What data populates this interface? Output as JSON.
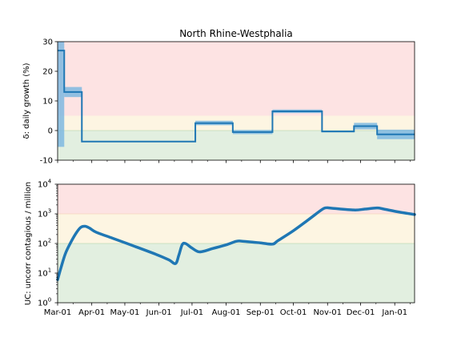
{
  "chart_data": [
    {
      "type": "line",
      "title": "North Rhine-Westphalia",
      "ylabel": "δ: daily growth (%)",
      "ylim": [
        -10,
        30
      ],
      "yticks": [
        -10,
        0,
        10,
        20,
        30
      ],
      "bands": [
        {
          "from": -10,
          "to": 0,
          "color": "#e2efe0"
        },
        {
          "from": 0,
          "to": 5,
          "color": "#fdf5e2"
        },
        {
          "from": 5,
          "to": 30,
          "color": "#fde3e3"
        }
      ],
      "series": [
        {
          "color": "#1f77b4",
          "band_color": "#7fb8e1",
          "segments": [
            {
              "start": "2020-03-01",
              "end": "2020-03-07",
              "value": 27,
              "lo": -5.5,
              "hi": 30
            },
            {
              "start": "2020-03-07",
              "end": "2020-03-23",
              "value": 13,
              "lo": 11.3,
              "hi": 14.7
            },
            {
              "start": "2020-03-23",
              "end": "2020-07-04",
              "value": -3.7,
              "lo": -3.9,
              "hi": -3.5
            },
            {
              "start": "2020-07-04",
              "end": "2020-08-07",
              "value": 2.5,
              "lo": 1.8,
              "hi": 3.3
            },
            {
              "start": "2020-08-07",
              "end": "2020-09-12",
              "value": -0.5,
              "lo": -1.2,
              "hi": 0.2
            },
            {
              "start": "2020-09-12",
              "end": "2020-10-27",
              "value": 6.5,
              "lo": 5.9,
              "hi": 7.1
            },
            {
              "start": "2020-10-27",
              "end": "2020-11-25",
              "value": -0.3,
              "lo": -0.6,
              "hi": 0.0
            },
            {
              "start": "2020-11-25",
              "end": "2020-12-16",
              "value": 1.5,
              "lo": 0.4,
              "hi": 2.6
            },
            {
              "start": "2020-12-16",
              "end": "2021-01-19",
              "value": -1.3,
              "lo": -2.9,
              "hi": 0.3
            }
          ]
        }
      ]
    },
    {
      "type": "line",
      "ylabel": "UC: uncorr contagious / million",
      "yscale": "log",
      "ylim": [
        1,
        10000
      ],
      "yticks": [
        {
          "value": 1,
          "base": "10",
          "exp": "0"
        },
        {
          "value": 10,
          "base": "10",
          "exp": "1"
        },
        {
          "value": 100,
          "base": "10",
          "exp": "2"
        },
        {
          "value": 1000,
          "base": "10",
          "exp": "3"
        },
        {
          "value": 10000,
          "base": "10",
          "exp": "4"
        }
      ],
      "bands": [
        {
          "from": 1,
          "to": 100,
          "color": "#e2efe0"
        },
        {
          "from": 100,
          "to": 1000,
          "color": "#fdf5e2"
        },
        {
          "from": 1000,
          "to": 10000,
          "color": "#fde3e3"
        }
      ],
      "series": [
        {
          "color": "#1f77b4",
          "points": [
            [
              "2020-03-01",
              6
            ],
            [
              "2020-03-04",
              15
            ],
            [
              "2020-03-08",
              45
            ],
            [
              "2020-03-13",
              110
            ],
            [
              "2020-03-18",
              230
            ],
            [
              "2020-03-22",
              350
            ],
            [
              "2020-03-26",
              380
            ],
            [
              "2020-03-30",
              330
            ],
            [
              "2020-04-05",
              240
            ],
            [
              "2020-04-20",
              150
            ],
            [
              "2020-05-10",
              80
            ],
            [
              "2020-05-30",
              42
            ],
            [
              "2020-06-10",
              28
            ],
            [
              "2020-06-16",
              21
            ],
            [
              "2020-06-19",
              40
            ],
            [
              "2020-06-22",
              90
            ],
            [
              "2020-06-25",
              100
            ],
            [
              "2020-07-01",
              70
            ],
            [
              "2020-07-08",
              52
            ],
            [
              "2020-07-20",
              68
            ],
            [
              "2020-08-01",
              90
            ],
            [
              "2020-08-10",
              118
            ],
            [
              "2020-08-15",
              120
            ],
            [
              "2020-09-01",
              105
            ],
            [
              "2020-09-12",
              95
            ],
            [
              "2020-09-17",
              125
            ],
            [
              "2020-10-01",
              270
            ],
            [
              "2020-10-15",
              650
            ],
            [
              "2020-10-27",
              1400
            ],
            [
              "2020-10-31",
              1600
            ],
            [
              "2020-11-05",
              1550
            ],
            [
              "2020-11-25",
              1350
            ],
            [
              "2020-12-05",
              1450
            ],
            [
              "2020-12-16",
              1580
            ],
            [
              "2020-12-22",
              1450
            ],
            [
              "2021-01-05",
              1150
            ],
            [
              "2021-01-19",
              950
            ]
          ]
        }
      ],
      "xticks": [
        {
          "date": "2020-03-01",
          "label": "Mar-01"
        },
        {
          "date": "2020-04-01",
          "label": "Apr-01"
        },
        {
          "date": "2020-05-01",
          "label": "May-01"
        },
        {
          "date": "2020-06-01",
          "label": "Jun-01"
        },
        {
          "date": "2020-07-01",
          "label": "Jul-01"
        },
        {
          "date": "2020-08-01",
          "label": "Aug-01"
        },
        {
          "date": "2020-09-01",
          "label": "Sep-01"
        },
        {
          "date": "2020-10-01",
          "label": "Oct-01"
        },
        {
          "date": "2020-11-01",
          "label": "Nov-01"
        },
        {
          "date": "2020-12-01",
          "label": "Dec-01"
        },
        {
          "date": "2021-01-01",
          "label": "Jan-01"
        }
      ]
    }
  ],
  "xlim": [
    "2020-03-01",
    "2021-01-19"
  ],
  "minor_xticks": [
    "2020-03-15",
    "2020-04-15",
    "2020-05-15",
    "2020-06-15",
    "2020-07-15",
    "2020-08-15",
    "2020-09-15",
    "2020-10-15",
    "2020-11-15",
    "2020-12-15",
    "2021-01-15"
  ]
}
